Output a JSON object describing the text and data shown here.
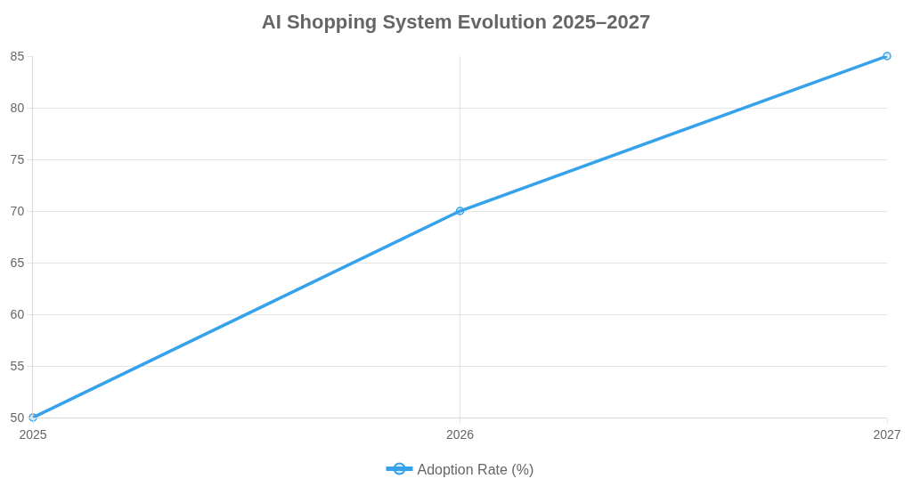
{
  "chart_data": {
    "type": "line",
    "title": "AI Shopping System Evolution 2025–2027",
    "categories": [
      "2025",
      "2026",
      "2027"
    ],
    "series": [
      {
        "name": "Adoption Rate (%)",
        "color": "#36a2eb",
        "values": [
          50,
          70,
          85
        ]
      }
    ],
    "ylim": [
      50,
      85
    ],
    "yticks": [
      50,
      55,
      60,
      65,
      70,
      75,
      80,
      85
    ],
    "grid": true,
    "legend": "bottom",
    "marker": "circle",
    "line_style": "solid"
  }
}
